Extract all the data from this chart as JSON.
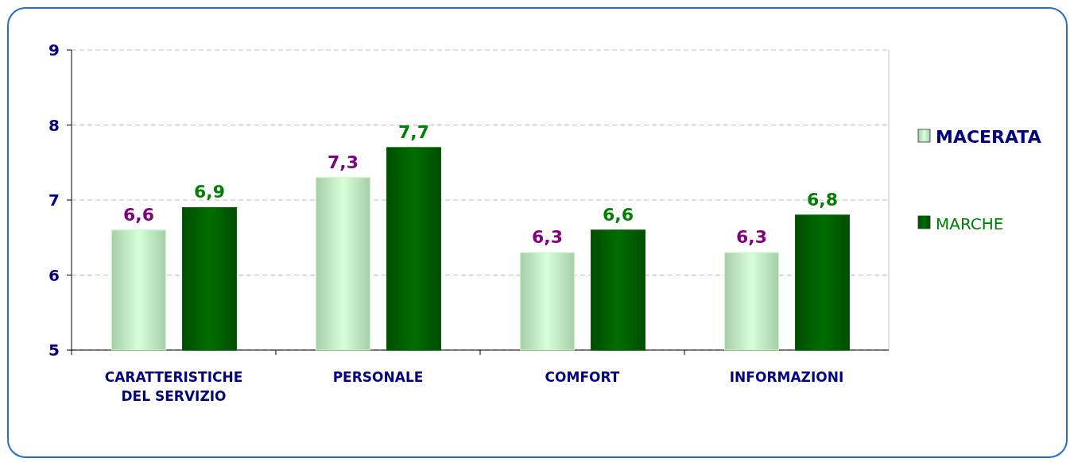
{
  "chart_data": {
    "type": "bar",
    "categories": [
      "CARATTERISTICHE DEL SERVIZIO",
      "PERSONALE",
      "COMFORT",
      "INFORMAZIONI"
    ],
    "series": [
      {
        "name": "MACERATA",
        "color": "#c8f8c8",
        "values": [
          6.6,
          7.3,
          6.3,
          6.3
        ],
        "value_labels": [
          "6,6",
          "7,3",
          "6,3",
          "6,3"
        ]
      },
      {
        "name": "MARCHE",
        "color": "#006600",
        "values": [
          6.9,
          7.7,
          6.6,
          6.8
        ],
        "value_labels": [
          "6,9",
          "7,7",
          "6,6",
          "6,8"
        ]
      }
    ],
    "ylim": [
      5,
      9
    ],
    "yticks": [
      5,
      6,
      7,
      8,
      9
    ],
    "grid": "y",
    "legend": "right"
  }
}
